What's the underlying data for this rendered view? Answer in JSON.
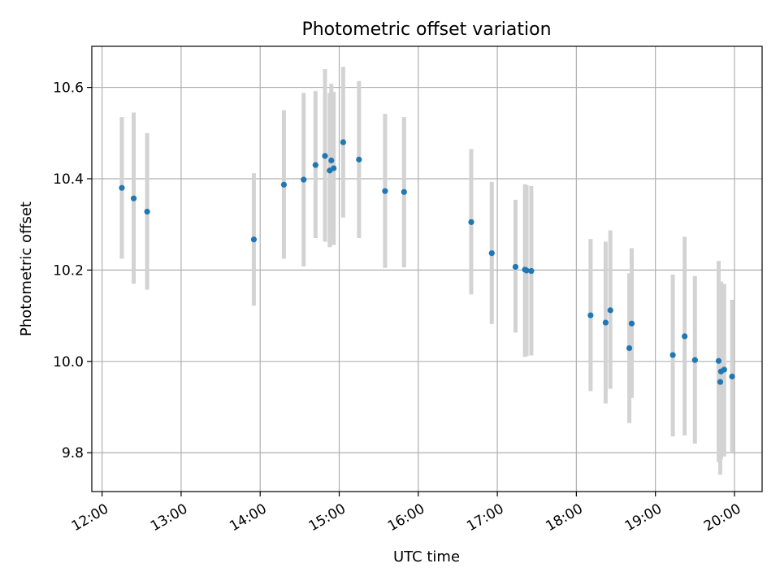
{
  "chart_data": {
    "type": "scatter",
    "title": "Photometric offset variation",
    "xlabel": "UTC time",
    "ylabel": "Photometric offset",
    "x_unit": "hours",
    "xlim": [
      11.87,
      20.35
    ],
    "ylim": [
      9.715,
      10.69
    ],
    "grid": true,
    "x_ticks": [
      {
        "value": 12,
        "label": "12:00"
      },
      {
        "value": 13,
        "label": "13:00"
      },
      {
        "value": 14,
        "label": "14:00"
      },
      {
        "value": 15,
        "label": "15:00"
      },
      {
        "value": 16,
        "label": "16:00"
      },
      {
        "value": 17,
        "label": "17:00"
      },
      {
        "value": 18,
        "label": "18:00"
      },
      {
        "value": 19,
        "label": "19:00"
      },
      {
        "value": 20,
        "label": "20:00"
      }
    ],
    "y_ticks": [
      {
        "value": 9.8,
        "label": "9.8"
      },
      {
        "value": 10.0,
        "label": "10.0"
      },
      {
        "value": 10.2,
        "label": "10.2"
      },
      {
        "value": 10.4,
        "label": "10.4"
      },
      {
        "value": 10.6,
        "label": "10.6"
      }
    ],
    "point_color": "#1f77b4",
    "errorbar_color": "#d3d3d3",
    "points": [
      {
        "x": 12.25,
        "y": 10.38,
        "lo": 10.225,
        "hi": 10.535
      },
      {
        "x": 12.4,
        "y": 10.357,
        "lo": 10.17,
        "hi": 10.545
      },
      {
        "x": 12.57,
        "y": 10.328,
        "lo": 10.157,
        "hi": 10.5
      },
      {
        "x": 13.92,
        "y": 10.267,
        "lo": 10.122,
        "hi": 10.412
      },
      {
        "x": 14.3,
        "y": 10.387,
        "lo": 10.225,
        "hi": 10.55
      },
      {
        "x": 14.55,
        "y": 10.398,
        "lo": 10.208,
        "hi": 10.588
      },
      {
        "x": 14.7,
        "y": 10.43,
        "lo": 10.27,
        "hi": 10.592
      },
      {
        "x": 14.82,
        "y": 10.45,
        "lo": 10.262,
        "hi": 10.64
      },
      {
        "x": 14.88,
        "y": 10.418,
        "lo": 10.25,
        "hi": 10.588
      },
      {
        "x": 14.9,
        "y": 10.44,
        "lo": 10.27,
        "hi": 10.608
      },
      {
        "x": 14.93,
        "y": 10.423,
        "lo": 10.255,
        "hi": 10.59
      },
      {
        "x": 15.05,
        "y": 10.48,
        "lo": 10.315,
        "hi": 10.645
      },
      {
        "x": 15.25,
        "y": 10.442,
        "lo": 10.27,
        "hi": 10.614
      },
      {
        "x": 15.58,
        "y": 10.373,
        "lo": 10.205,
        "hi": 10.542
      },
      {
        "x": 15.82,
        "y": 10.371,
        "lo": 10.206,
        "hi": 10.535
      },
      {
        "x": 16.67,
        "y": 10.305,
        "lo": 10.147,
        "hi": 10.465
      },
      {
        "x": 16.93,
        "y": 10.237,
        "lo": 10.082,
        "hi": 10.393
      },
      {
        "x": 17.23,
        "y": 10.207,
        "lo": 10.063,
        "hi": 10.354
      },
      {
        "x": 17.35,
        "y": 10.201,
        "lo": 10.01,
        "hi": 10.388
      },
      {
        "x": 17.37,
        "y": 10.199,
        "lo": 10.012,
        "hi": 10.386
      },
      {
        "x": 17.43,
        "y": 10.198,
        "lo": 10.013,
        "hi": 10.384
      },
      {
        "x": 18.18,
        "y": 10.101,
        "lo": 9.935,
        "hi": 10.268
      },
      {
        "x": 18.37,
        "y": 10.085,
        "lo": 9.908,
        "hi": 10.262
      },
      {
        "x": 18.43,
        "y": 10.112,
        "lo": 9.94,
        "hi": 10.287
      },
      {
        "x": 18.67,
        "y": 10.029,
        "lo": 9.865,
        "hi": 10.193
      },
      {
        "x": 18.7,
        "y": 10.083,
        "lo": 9.92,
        "hi": 10.248
      },
      {
        "x": 19.22,
        "y": 10.014,
        "lo": 9.836,
        "hi": 10.19
      },
      {
        "x": 19.37,
        "y": 10.055,
        "lo": 9.838,
        "hi": 10.273
      },
      {
        "x": 19.5,
        "y": 10.003,
        "lo": 9.82,
        "hi": 10.187
      },
      {
        "x": 19.8,
        "y": 10.001,
        "lo": 9.78,
        "hi": 10.22
      },
      {
        "x": 19.82,
        "y": 9.955,
        "lo": 9.752,
        "hi": 10.158
      },
      {
        "x": 19.83,
        "y": 9.978,
        "lo": 9.786,
        "hi": 10.175
      },
      {
        "x": 19.87,
        "y": 9.982,
        "lo": 9.792,
        "hi": 10.17
      },
      {
        "x": 19.97,
        "y": 9.967,
        "lo": 9.8,
        "hi": 10.135
      }
    ]
  }
}
